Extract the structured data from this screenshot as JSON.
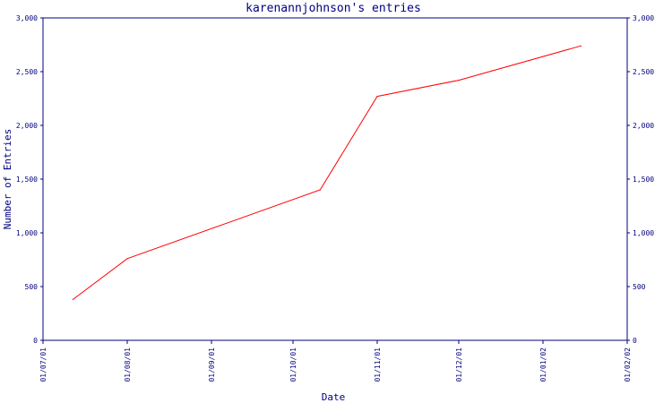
{
  "chart_data": {
    "type": "line",
    "title": "karenannjohnson's entries",
    "xlabel": "Date",
    "ylabel": "Number of Entries",
    "x_ticks": [
      "01/07/01",
      "01/08/01",
      "01/09/01",
      "01/10/01",
      "01/11/01",
      "01/12/01",
      "01/01/02",
      "01/02/02"
    ],
    "y_ticks": [
      "0",
      "500",
      "1,000",
      "1,500",
      "2,000",
      "2,500",
      "3,000"
    ],
    "ylim": [
      0,
      3000
    ],
    "xlim": [
      "2001-07-01",
      "2002-02-01"
    ],
    "grid": false,
    "right_axis": true,
    "series": [
      {
        "color": "#ff0000",
        "points": [
          {
            "x": "2001-07-12",
            "y": 380
          },
          {
            "x": "2001-08-01",
            "y": 760
          },
          {
            "x": "2001-10-11",
            "y": 1400
          },
          {
            "x": "2001-11-01",
            "y": 2270
          },
          {
            "x": "2001-12-01",
            "y": 2420
          },
          {
            "x": "2002-01-15",
            "y": 2740
          }
        ]
      }
    ]
  },
  "colors": {
    "axis": "#000080",
    "line": "#ff0000"
  }
}
